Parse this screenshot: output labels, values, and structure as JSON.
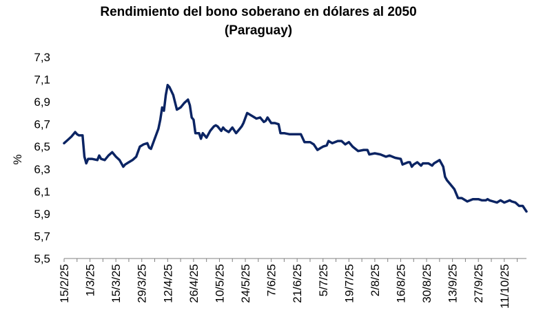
{
  "chart_data": {
    "type": "line",
    "title": "Rendimiento del bono soberano en dólares al 2050",
    "subtitle": "(Paraguay)",
    "ylabel": "%",
    "xlabel": "",
    "ylim": [
      5.5,
      7.3
    ],
    "yticks": [
      "7,3",
      "7,1",
      "6,9",
      "6,7",
      "6,5",
      "6,3",
      "6,1",
      "5,9",
      "5,7",
      "5,5"
    ],
    "xticks": [
      "15/2/25",
      "1/3/25",
      "15/3/25",
      "29/3/25",
      "12/4/25",
      "26/4/25",
      "10/5/25",
      "24/5/25",
      "7/6/25",
      "21/6/25",
      "5/7/25",
      "19/7/25",
      "2/8/25",
      "16/8/25",
      "30/8/25",
      "13/9/25",
      "27/9/25",
      "11/10/25"
    ],
    "x_range": [
      "2025-02-15",
      "2025-10-23"
    ],
    "grid": false,
    "line_color": "#0b2463",
    "series": [
      {
        "x": [
          "2025-02-15",
          "2025-02-17",
          "2025-02-19",
          "2025-02-21",
          "2025-02-22",
          "2025-02-23",
          "2025-02-25",
          "2025-02-26",
          "2025-02-27",
          "2025-02-28",
          "2025-03-02",
          "2025-03-05",
          "2025-03-06",
          "2025-03-07",
          "2025-03-09",
          "2025-03-11",
          "2025-03-13",
          "2025-03-15",
          "2025-03-17",
          "2025-03-19",
          "2025-03-20",
          "2025-03-22",
          "2025-03-24",
          "2025-03-26",
          "2025-03-28",
          "2025-03-30",
          "2025-04-01",
          "2025-04-02",
          "2025-04-03",
          "2025-04-05",
          "2025-04-07",
          "2025-04-08",
          "2025-04-09",
          "2025-04-10",
          "2025-04-11",
          "2025-04-12",
          "2025-04-13",
          "2025-04-15",
          "2025-04-17",
          "2025-04-19",
          "2025-04-21",
          "2025-04-23",
          "2025-04-24",
          "2025-04-25",
          "2025-04-26",
          "2025-04-27",
          "2025-04-29",
          "2025-04-30",
          "2025-05-01",
          "2025-05-03",
          "2025-05-05",
          "2025-05-07",
          "2025-05-08",
          "2025-05-09",
          "2025-05-11",
          "2025-05-12",
          "2025-05-13",
          "2025-05-15",
          "2025-05-17",
          "2025-05-19",
          "2025-05-21",
          "2025-05-22",
          "2025-05-23",
          "2025-05-25",
          "2025-05-27",
          "2025-05-29",
          "2025-05-30",
          "2025-06-01",
          "2025-06-03",
          "2025-06-04",
          "2025-06-05",
          "2025-06-07",
          "2025-06-09",
          "2025-06-11",
          "2025-06-12",
          "2025-06-14",
          "2025-06-17",
          "2025-06-20",
          "2025-06-23",
          "2025-06-25",
          "2025-06-28",
          "2025-06-30",
          "2025-07-02",
          "2025-07-04",
          "2025-07-05",
          "2025-07-07",
          "2025-07-08",
          "2025-07-10",
          "2025-07-13",
          "2025-07-15",
          "2025-07-17",
          "2025-07-19",
          "2025-07-21",
          "2025-07-24",
          "2025-07-27",
          "2025-07-29",
          "2025-07-30",
          "2025-08-02",
          "2025-08-05",
          "2025-08-08",
          "2025-08-10",
          "2025-08-13",
          "2025-08-16",
          "2025-08-17",
          "2025-08-20",
          "2025-08-21",
          "2025-08-22",
          "2025-08-23",
          "2025-08-25",
          "2025-08-27",
          "2025-08-28",
          "2025-08-31",
          "2025-09-02",
          "2025-09-03",
          "2025-09-06",
          "2025-09-08",
          "2025-09-09",
          "2025-09-10",
          "2025-09-12",
          "2025-09-14",
          "2025-09-16",
          "2025-09-18",
          "2025-09-21",
          "2025-09-24",
          "2025-09-25",
          "2025-09-27",
          "2025-09-29",
          "2025-10-01",
          "2025-10-02",
          "2025-10-03",
          "2025-10-05",
          "2025-10-07",
          "2025-10-08",
          "2025-10-09",
          "2025-10-11",
          "2025-10-14",
          "2025-10-15",
          "2025-10-17",
          "2025-10-19",
          "2025-10-21",
          "2025-10-23"
        ],
        "values": [
          6.53,
          6.56,
          6.59,
          6.63,
          6.61,
          6.6,
          6.6,
          6.41,
          6.35,
          6.39,
          6.39,
          6.38,
          6.42,
          6.39,
          6.38,
          6.42,
          6.45,
          6.41,
          6.38,
          6.32,
          6.34,
          6.36,
          6.38,
          6.41,
          6.5,
          6.52,
          6.53,
          6.49,
          6.48,
          6.57,
          6.66,
          6.74,
          6.85,
          6.82,
          6.96,
          7.05,
          7.03,
          6.96,
          6.83,
          6.85,
          6.89,
          6.92,
          6.87,
          6.76,
          6.74,
          6.62,
          6.62,
          6.57,
          6.62,
          6.58,
          6.64,
          6.68,
          6.69,
          6.68,
          6.64,
          6.67,
          6.65,
          6.63,
          6.67,
          6.62,
          6.66,
          6.68,
          6.71,
          6.8,
          6.78,
          6.76,
          6.75,
          6.76,
          6.72,
          6.73,
          6.76,
          6.71,
          6.71,
          6.7,
          6.62,
          6.62,
          6.61,
          6.61,
          6.61,
          6.54,
          6.54,
          6.52,
          6.47,
          6.49,
          6.5,
          6.51,
          6.55,
          6.53,
          6.55,
          6.55,
          6.52,
          6.54,
          6.5,
          6.46,
          6.47,
          6.47,
          6.43,
          6.44,
          6.43,
          6.41,
          6.42,
          6.4,
          6.39,
          6.34,
          6.36,
          6.36,
          6.32,
          6.34,
          6.36,
          6.33,
          6.35,
          6.35,
          6.33,
          6.35,
          6.38,
          6.32,
          6.23,
          6.2,
          6.16,
          6.12,
          6.04,
          6.04,
          6.01,
          6.03,
          6.03,
          6.03,
          6.02,
          6.02,
          6.03,
          6.02,
          6.01,
          6.0,
          6.01,
          6.02,
          6.0,
          6.02,
          6.01,
          6.0,
          5.97,
          5.97,
          5.92
        ]
      }
    ]
  }
}
